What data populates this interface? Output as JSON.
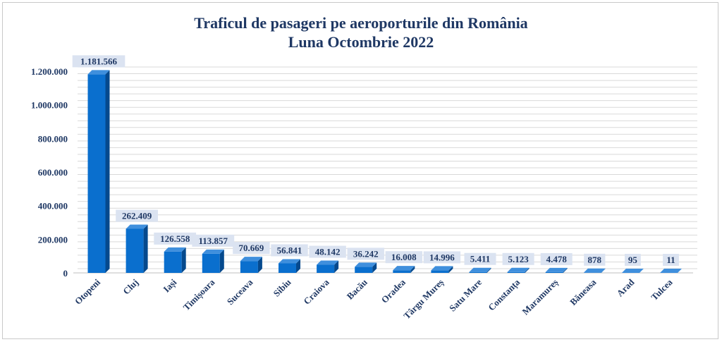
{
  "chart_data": {
    "type": "bar",
    "title": "Traficul de pasageri pe aeroporturile din România",
    "subtitle": "Luna Octombrie 2022",
    "xlabel": "",
    "ylabel": "",
    "ylim": [
      0,
      1200000
    ],
    "yticks": [
      "0",
      "200.000",
      "400.000",
      "600.000",
      "800.000",
      "1.000.000",
      "1.200.000"
    ],
    "yticks_values": [
      0,
      200000,
      400000,
      600000,
      800000,
      1000000,
      1200000
    ],
    "grid": true,
    "legend": "none",
    "categories": [
      "Otopeni",
      "Cluj",
      "Iași",
      "Timișoara",
      "Suceava",
      "Sibiu",
      "Craiova",
      "Bacău",
      "Oradea",
      "Târgu Mureș",
      "Satu Mare",
      "Constanța",
      "Maramureș",
      "Băneasa",
      "Arad",
      "Tulcea"
    ],
    "values": [
      1181566,
      262409,
      126558,
      113857,
      70669,
      56841,
      48142,
      36242,
      16008,
      14996,
      5411,
      5123,
      4478,
      878,
      95,
      11
    ],
    "value_labels": [
      "1.181.566",
      "262.409",
      "126.558",
      "113.857",
      "70.669",
      "56.841",
      "48.142",
      "36.242",
      "16.008",
      "14.996",
      "5.411",
      "5.123",
      "4.478",
      "878",
      "95",
      "11"
    ],
    "colors": {
      "bar_front": "#0a6fce",
      "bar_side": "#05498d",
      "bar_top": "#3f8fdd",
      "text": "#1f3864",
      "label_bg": "#dbe3f1",
      "grid": "#d9d9d9"
    }
  }
}
